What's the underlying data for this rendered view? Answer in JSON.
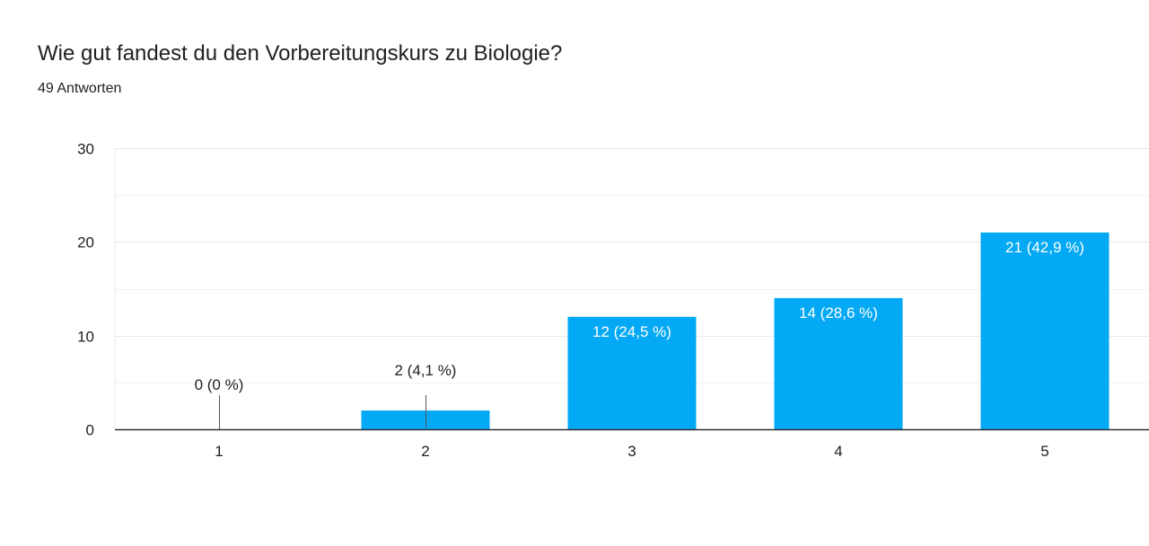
{
  "header": {
    "title": "Wie gut fandest du den Vorbereitungskurs zu Biologie?",
    "response_count": "49 Antworten"
  },
  "colors": {
    "bar": "#03a9f4",
    "gridline": "#e8e8e8",
    "axis": "#333333",
    "text": "#202124",
    "inside_label": "#ffffff"
  },
  "chart_data": {
    "type": "bar",
    "categories": [
      "1",
      "2",
      "3",
      "4",
      "5"
    ],
    "values": [
      0,
      2,
      12,
      14,
      21
    ],
    "data_labels": [
      "0 (0 %)",
      "2 (4,1 %)",
      "12 (24,5 %)",
      "14 (28,6 %)",
      "21 (42,9 %)"
    ],
    "yticks": [
      0,
      10,
      20,
      30
    ],
    "ylim": [
      0,
      30
    ],
    "minor_gridlines": [
      5,
      15,
      25
    ],
    "grid": true,
    "legend": "none"
  }
}
